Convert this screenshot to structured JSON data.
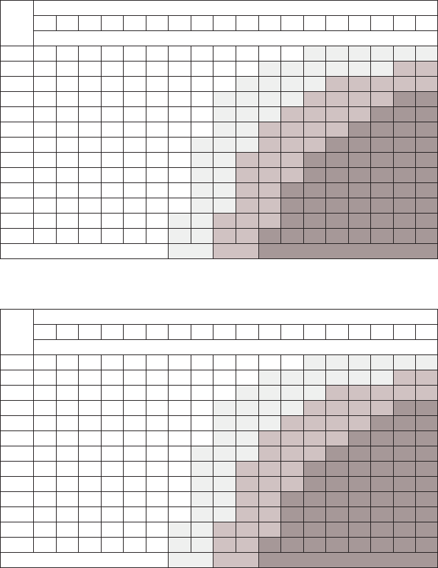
{
  "chart_data": [
    {
      "type": "heatmap",
      "colors": [
        "#ffffff",
        "#eff0ef",
        "#d0c2c2",
        "#a69898"
      ],
      "columns": 18,
      "rows": [
        [
          0,
          0,
          0,
          0,
          0,
          0,
          0,
          0,
          0,
          0,
          0,
          0,
          1,
          1,
          1,
          1,
          1,
          1
        ],
        [
          0,
          0,
          0,
          0,
          0,
          0,
          0,
          0,
          0,
          0,
          1,
          1,
          1,
          1,
          1,
          1,
          2,
          2
        ],
        [
          0,
          0,
          0,
          0,
          0,
          0,
          0,
          0,
          0,
          1,
          1,
          1,
          1,
          2,
          2,
          2,
          2,
          2
        ],
        [
          0,
          0,
          0,
          0,
          0,
          0,
          0,
          0,
          1,
          1,
          1,
          1,
          2,
          2,
          2,
          2,
          3,
          3
        ],
        [
          0,
          0,
          0,
          0,
          0,
          0,
          0,
          0,
          1,
          1,
          1,
          2,
          2,
          2,
          2,
          3,
          3,
          3
        ],
        [
          0,
          0,
          0,
          0,
          0,
          0,
          0,
          0,
          1,
          1,
          2,
          2,
          2,
          2,
          3,
          3,
          3,
          3
        ],
        [
          0,
          0,
          0,
          0,
          0,
          0,
          0,
          1,
          1,
          1,
          2,
          2,
          2,
          3,
          3,
          3,
          3,
          3
        ],
        [
          0,
          0,
          0,
          0,
          0,
          0,
          0,
          1,
          1,
          2,
          2,
          2,
          3,
          3,
          3,
          3,
          3,
          3
        ],
        [
          0,
          0,
          0,
          0,
          0,
          0,
          0,
          1,
          1,
          2,
          2,
          2,
          3,
          3,
          3,
          3,
          3,
          3
        ],
        [
          0,
          0,
          0,
          0,
          0,
          0,
          0,
          1,
          1,
          2,
          2,
          3,
          3,
          3,
          3,
          3,
          3,
          3
        ],
        [
          0,
          0,
          0,
          0,
          0,
          0,
          0,
          1,
          1,
          2,
          2,
          3,
          3,
          3,
          3,
          3,
          3,
          3
        ],
        [
          0,
          0,
          0,
          0,
          0,
          0,
          1,
          1,
          2,
          2,
          2,
          3,
          3,
          3,
          3,
          3,
          3,
          3
        ],
        [
          0,
          0,
          0,
          0,
          0,
          0,
          1,
          1,
          2,
          2,
          3,
          3,
          3,
          3,
          3,
          3,
          3,
          3
        ]
      ],
      "legend_bands": [
        0,
        1,
        2,
        3
      ]
    },
    {
      "type": "heatmap",
      "colors": [
        "#ffffff",
        "#eff0ef",
        "#d0c2c2",
        "#a69898"
      ],
      "columns": 18,
      "rows": [
        [
          0,
          0,
          0,
          0,
          0,
          0,
          0,
          0,
          0,
          0,
          0,
          0,
          1,
          1,
          1,
          1,
          1,
          1
        ],
        [
          0,
          0,
          0,
          0,
          0,
          0,
          0,
          0,
          0,
          0,
          1,
          1,
          1,
          1,
          1,
          1,
          2,
          2
        ],
        [
          0,
          0,
          0,
          0,
          0,
          0,
          0,
          0,
          0,
          1,
          1,
          1,
          1,
          2,
          2,
          2,
          2,
          2
        ],
        [
          0,
          0,
          0,
          0,
          0,
          0,
          0,
          0,
          1,
          1,
          1,
          1,
          2,
          2,
          2,
          2,
          3,
          3
        ],
        [
          0,
          0,
          0,
          0,
          0,
          0,
          0,
          0,
          1,
          1,
          1,
          2,
          2,
          2,
          2,
          3,
          3,
          3
        ],
        [
          0,
          0,
          0,
          0,
          0,
          0,
          0,
          0,
          1,
          1,
          2,
          2,
          2,
          2,
          3,
          3,
          3,
          3
        ],
        [
          0,
          0,
          0,
          0,
          0,
          0,
          0,
          1,
          1,
          1,
          2,
          2,
          2,
          3,
          3,
          3,
          3,
          3
        ],
        [
          0,
          0,
          0,
          0,
          0,
          0,
          0,
          1,
          1,
          2,
          2,
          2,
          3,
          3,
          3,
          3,
          3,
          3
        ],
        [
          0,
          0,
          0,
          0,
          0,
          0,
          0,
          1,
          1,
          2,
          2,
          2,
          3,
          3,
          3,
          3,
          3,
          3
        ],
        [
          0,
          0,
          0,
          0,
          0,
          0,
          0,
          1,
          1,
          2,
          2,
          3,
          3,
          3,
          3,
          3,
          3,
          3
        ],
        [
          0,
          0,
          0,
          0,
          0,
          0,
          0,
          1,
          1,
          2,
          2,
          3,
          3,
          3,
          3,
          3,
          3,
          3
        ],
        [
          0,
          0,
          0,
          0,
          0,
          0,
          1,
          1,
          2,
          2,
          2,
          3,
          3,
          3,
          3,
          3,
          3,
          3
        ],
        [
          0,
          0,
          0,
          0,
          0,
          0,
          1,
          1,
          2,
          2,
          3,
          3,
          3,
          3,
          3,
          3,
          3,
          3
        ]
      ],
      "legend_bands": [
        0,
        1,
        2,
        3
      ]
    }
  ]
}
